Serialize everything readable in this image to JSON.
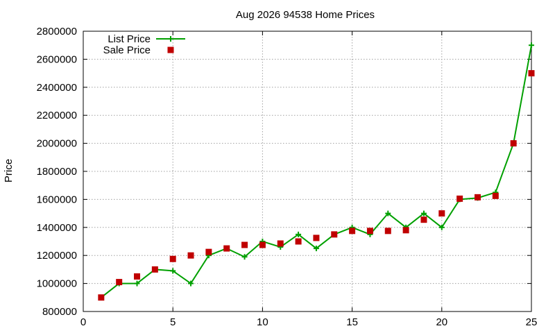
{
  "chart_data": {
    "type": "line",
    "title": "Aug 2026 94538 Home Prices",
    "xlabel": "",
    "ylabel": "Price",
    "xlim": [
      0,
      25
    ],
    "ylim": [
      800000,
      2800000
    ],
    "xticks": [
      0,
      5,
      10,
      15,
      20,
      25
    ],
    "yticks": [
      800000,
      1000000,
      1200000,
      1400000,
      1600000,
      1800000,
      2000000,
      2200000,
      2400000,
      2600000,
      2800000
    ],
    "grid": true,
    "legend_position": "top-left",
    "series": [
      {
        "name": "List Price",
        "style": "line-points",
        "marker": "plus",
        "color": "#00a000",
        "x": [
          1,
          2,
          3,
          4,
          5,
          6,
          7,
          8,
          9,
          10,
          11,
          12,
          13,
          14,
          15,
          16,
          17,
          18,
          19,
          20,
          21,
          22,
          23,
          24,
          25
        ],
        "y": [
          900000,
          1000000,
          1000000,
          1100000,
          1090000,
          1000000,
          1200000,
          1250000,
          1190000,
          1300000,
          1260000,
          1350000,
          1250000,
          1350000,
          1400000,
          1350000,
          1500000,
          1400000,
          1500000,
          1400000,
          1600000,
          1610000,
          1650000,
          2000000,
          2700000
        ]
      },
      {
        "name": "Sale Price",
        "style": "points",
        "marker": "square",
        "color": "#c00000",
        "x": [
          1,
          2,
          3,
          4,
          5,
          6,
          7,
          8,
          9,
          10,
          11,
          12,
          13,
          14,
          15,
          16,
          17,
          18,
          19,
          20,
          21,
          22,
          23,
          24,
          25
        ],
        "y": [
          900000,
          1010000,
          1050000,
          1100000,
          1175000,
          1200000,
          1225000,
          1250000,
          1275000,
          1275000,
          1285000,
          1300000,
          1325000,
          1350000,
          1375000,
          1375000,
          1375000,
          1380000,
          1455000,
          1500000,
          1605000,
          1615000,
          1625000,
          2000000,
          2500000
        ]
      }
    ]
  }
}
